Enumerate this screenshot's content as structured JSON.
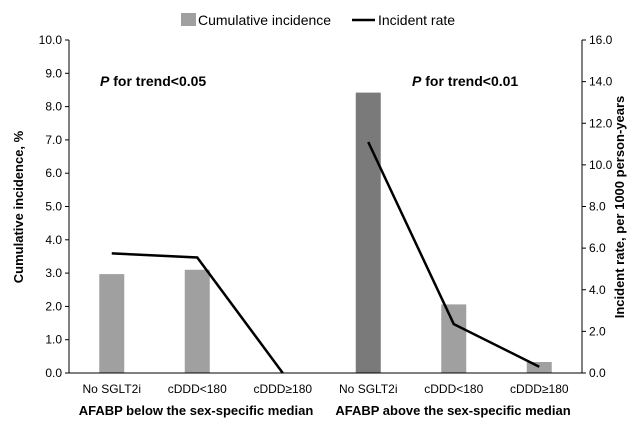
{
  "chart_data": {
    "type": "bar",
    "categories": [
      "No SGLT2i",
      "cDDD<180",
      "cDDD≥180",
      "No SGLT2i",
      "cDDD<180",
      "cDDD≥180"
    ],
    "groups": [
      {
        "label": "AFABP below the sex-specific median",
        "annotation_p": "P",
        "annotation_rest": " for trend<0.05"
      },
      {
        "label": "AFABP above the sex-specific median",
        "annotation_p": "P",
        "annotation_rest": " for trend<0.01"
      }
    ],
    "series": [
      {
        "name": "Cumulative incidence",
        "type": "bar",
        "axis": "left",
        "values": [
          2.97,
          3.1,
          null,
          8.42,
          2.06,
          0.33
        ]
      },
      {
        "name": "Incident rate",
        "type": "line",
        "axis": "right",
        "segments": [
          [
            5.75,
            5.55,
            0.0
          ],
          [
            11.1,
            2.35,
            0.3
          ]
        ]
      }
    ],
    "ylabel": "Cumulative incidence, %",
    "y2label": "Incident rate, per 1000 person-years",
    "ylim": [
      0,
      10
    ],
    "y2lim": [
      0,
      16
    ],
    "yticks": [
      "0.0",
      "1.0",
      "2.0",
      "3.0",
      "4.0",
      "5.0",
      "6.0",
      "7.0",
      "8.0",
      "9.0",
      "10.0"
    ],
    "y2ticks": [
      "0.0",
      "2.0",
      "4.0",
      "6.0",
      "8.0",
      "10.0",
      "12.0",
      "14.0",
      "16.0"
    ],
    "legend_position": "top",
    "colors": {
      "bar": "#a0a0a0",
      "bar_dark": "#7a7a7a",
      "line": "#000000",
      "axis": "#000000"
    }
  }
}
